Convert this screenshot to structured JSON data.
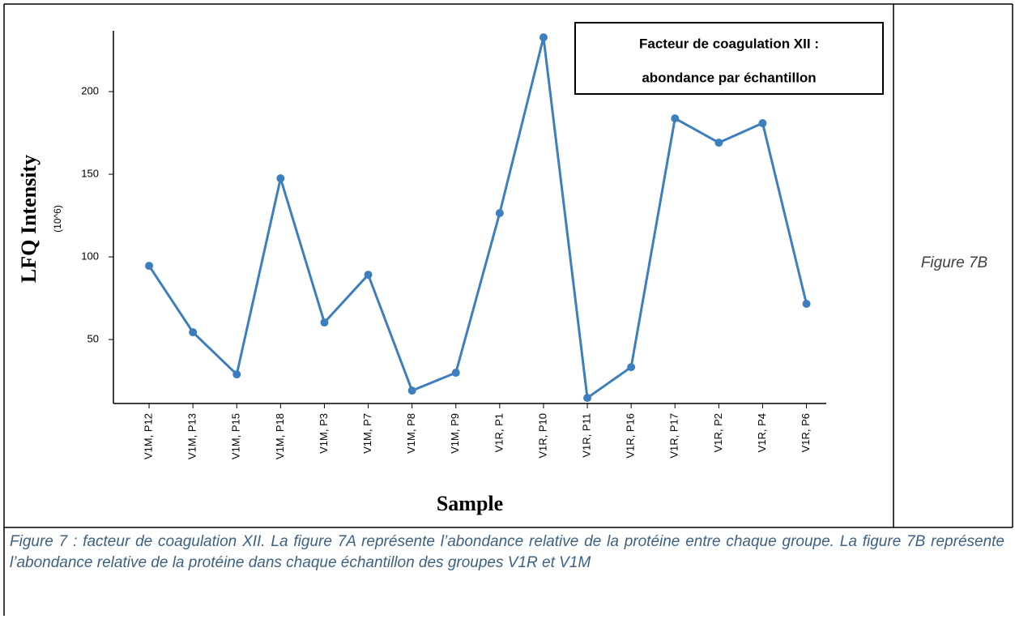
{
  "chart_data": {
    "type": "line",
    "title": [
      "Facteur de coagulation XII :",
      "abondance par échantillon"
    ],
    "y_label": "LFQ Intensity",
    "y_unit": "(10^6)",
    "x_label": "Sample",
    "categories": [
      "V1M, P12",
      "V1M, P13",
      "V1M, P15",
      "V1M, P18",
      "V1M, P3",
      "V1M, P7",
      "V1M, P8",
      "V1M, P9",
      "V1R, P1",
      "V1R, P10",
      "V1R, P11",
      "V1R, P16",
      "V1R, P17",
      "V1R, P2",
      "V1R, P4",
      "V1R, P6"
    ],
    "series": [
      {
        "color": "#3d7ebf",
        "values": [
          94.6,
          54.4,
          28.9,
          147.5,
          60.3,
          89.2,
          19.1,
          29.9,
          126.5,
          232.8,
          14.7,
          33.3,
          183.8,
          169.1,
          180.9,
          71.6
        ]
      }
    ],
    "ylim": [
      11.3,
      236.8
    ],
    "yticks": [
      50,
      100,
      150,
      200
    ],
    "grid": false
  },
  "figure_label": "Figure 7B",
  "caption": "Figure 7 : facteur de coagulation XII. La figure 7A représente l’abondance relative de la protéine entre chaque groupe. La figure 7B représente l’abondance relative de la protéine dans chaque échantillon des groupes V1R et V1M"
}
